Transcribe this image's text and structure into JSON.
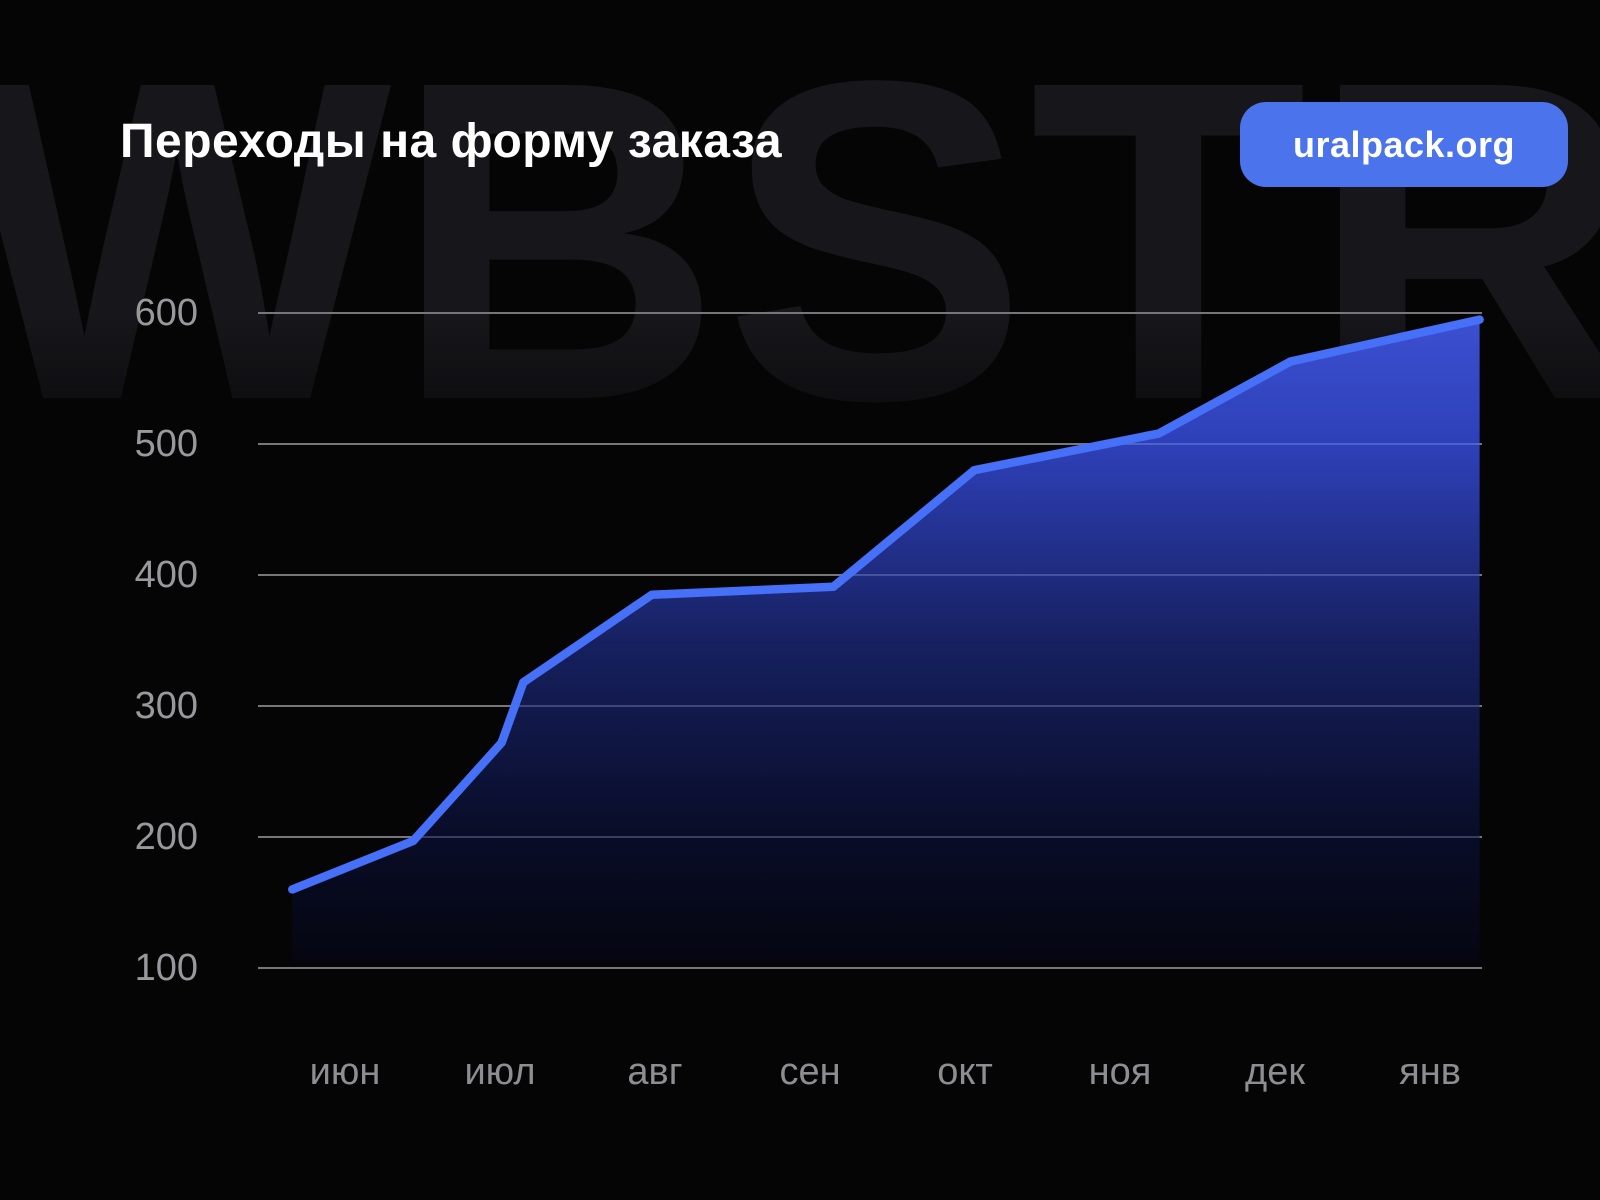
{
  "title": "Переходы на форму заказа",
  "watermark": "WBSTR",
  "badge": {
    "label": "uralpack.org",
    "bg_color": "#4b74ec"
  },
  "colors": {
    "background": "#050506",
    "watermark_text": "#17171b",
    "grid": "#76767b",
    "axis_text_y": "#98989d",
    "axis_text_x": "#8d8d92",
    "line": "#4570f7",
    "area_top": "#3c50d2",
    "area_bottom": "#04050e",
    "title_text": "#ffffff"
  },
  "chart_data": {
    "type": "area",
    "title": "Переходы на форму заказа",
    "categories": [
      "июн",
      "июл",
      "авг",
      "сен",
      "окт",
      "ноя",
      "дек",
      "янв"
    ],
    "values": [
      160,
      270,
      385,
      390,
      480,
      510,
      565,
      595
    ],
    "y_ticks": [
      100,
      200,
      300,
      400,
      500,
      600
    ],
    "ylim": [
      100,
      600
    ],
    "xlabel": "",
    "ylabel": "",
    "grid": "horizontal",
    "legend": "none",
    "line_points": [
      {
        "m": -0.34,
        "v": 160
      },
      {
        "m": 0.44,
        "v": 197
      },
      {
        "m": 1.01,
        "v": 272
      },
      {
        "m": 1.15,
        "v": 318
      },
      {
        "m": 1.98,
        "v": 385
      },
      {
        "m": 3.15,
        "v": 391
      },
      {
        "m": 4.06,
        "v": 480
      },
      {
        "m": 5.25,
        "v": 508
      },
      {
        "m": 6.1,
        "v": 563
      },
      {
        "m": 7.32,
        "v": 595
      }
    ]
  }
}
